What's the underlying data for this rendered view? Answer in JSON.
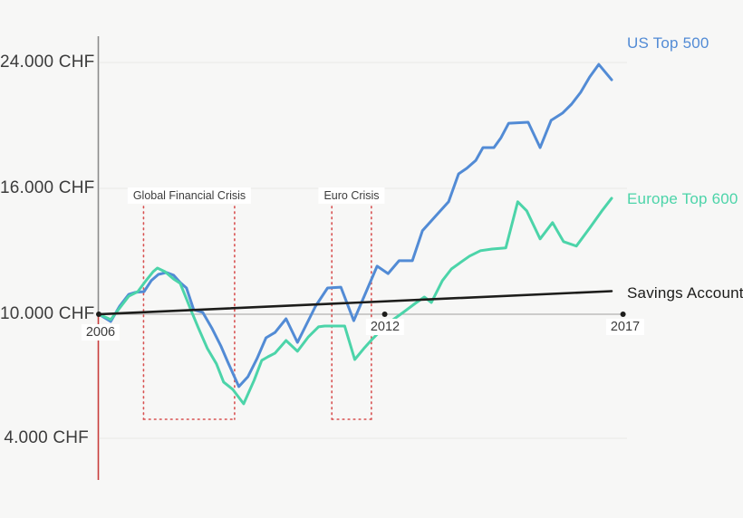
{
  "colors": {
    "background": "#f7f7f6",
    "us": "#528bd5",
    "europe": "#4cd4a9",
    "savings": "#1d1d1b",
    "axis": "#8c8c8c",
    "axis_below_start": "#c83c3c",
    "gridline": "#ebebe9",
    "baseline": "#b2b1af",
    "crisis": "#d85050",
    "text": "#3c3c3c",
    "chip_bg": "#ffffff"
  },
  "chart_data": {
    "type": "line",
    "currency": "CHF",
    "start_value": 10000,
    "baseline_value": 10000,
    "grid": "horizontal gridlines only",
    "legend_position": "labels at right ends of lines",
    "x_axis": {
      "ticks": [
        2006,
        2012,
        2017
      ],
      "labels": [
        "2006",
        "2012",
        "2017"
      ],
      "range": [
        2006,
        2017
      ]
    },
    "y_axis": {
      "tick_values": [
        24000,
        16000,
        10000,
        4000
      ],
      "tick_labels": [
        "24.000 CHF",
        "16.000 CHF",
        "10.000 CHF",
        "4.000 CHF"
      ]
    },
    "series": [
      {
        "name": "US Top 500",
        "color_key": "us",
        "points": [
          [
            2006.0,
            10000
          ],
          [
            2006.25,
            9650
          ],
          [
            2006.44,
            10390
          ],
          [
            2006.63,
            10950
          ],
          [
            2006.76,
            11040
          ],
          [
            2006.95,
            11080
          ],
          [
            2007.1,
            11600
          ],
          [
            2007.25,
            11900
          ],
          [
            2007.42,
            11990
          ],
          [
            2007.57,
            11860
          ],
          [
            2007.71,
            11510
          ],
          [
            2007.84,
            11250
          ],
          [
            2007.99,
            10220
          ],
          [
            2008.18,
            10090
          ],
          [
            2008.37,
            9340
          ],
          [
            2008.56,
            8470
          ],
          [
            2008.71,
            7680
          ],
          [
            2008.94,
            6500
          ],
          [
            2009.13,
            6980
          ],
          [
            2009.32,
            7850
          ],
          [
            2009.51,
            8860
          ],
          [
            2009.7,
            9120
          ],
          [
            2009.93,
            9780
          ],
          [
            2010.17,
            8640
          ],
          [
            2010.55,
            10390
          ],
          [
            2010.8,
            11250
          ],
          [
            2011.08,
            11290
          ],
          [
            2011.35,
            9690
          ],
          [
            2011.84,
            12290
          ],
          [
            2012.07,
            11940
          ],
          [
            2012.3,
            12550
          ],
          [
            2012.58,
            12550
          ],
          [
            2012.79,
            13980
          ],
          [
            2013.08,
            14710
          ],
          [
            2013.34,
            15360
          ],
          [
            2013.55,
            16920
          ],
          [
            2013.72,
            17270
          ],
          [
            2013.91,
            17780
          ],
          [
            2014.06,
            18590
          ],
          [
            2014.29,
            18590
          ],
          [
            2014.44,
            19220
          ],
          [
            2014.6,
            20140
          ],
          [
            2015.01,
            20200
          ],
          [
            2015.26,
            18590
          ],
          [
            2015.49,
            20320
          ],
          [
            2015.73,
            20780
          ],
          [
            2015.92,
            21350
          ],
          [
            2016.11,
            22100
          ],
          [
            2016.3,
            23080
          ],
          [
            2016.49,
            24120
          ],
          [
            2016.76,
            25100
          ]
        ]
      },
      {
        "name": "Europe Top 600",
        "color_key": "europe",
        "points": [
          [
            2006.0,
            10000
          ],
          [
            2006.25,
            9740
          ],
          [
            2006.44,
            10300
          ],
          [
            2006.63,
            10860
          ],
          [
            2006.82,
            11080
          ],
          [
            2006.99,
            11600
          ],
          [
            2007.14,
            12030
          ],
          [
            2007.23,
            12200
          ],
          [
            2007.39,
            12030
          ],
          [
            2007.57,
            11680
          ],
          [
            2007.71,
            11470
          ],
          [
            2007.84,
            10730
          ],
          [
            2007.94,
            10170
          ],
          [
            2008.09,
            9340
          ],
          [
            2008.28,
            8340
          ],
          [
            2008.47,
            7600
          ],
          [
            2008.62,
            6720
          ],
          [
            2008.81,
            6370
          ],
          [
            2009.04,
            5670
          ],
          [
            2009.26,
            6810
          ],
          [
            2009.42,
            7770
          ],
          [
            2009.55,
            7940
          ],
          [
            2009.7,
            8120
          ],
          [
            2009.93,
            8730
          ],
          [
            2010.17,
            8210
          ],
          [
            2010.4,
            8910
          ],
          [
            2010.61,
            9390
          ],
          [
            2010.74,
            9430
          ],
          [
            2011.16,
            9430
          ],
          [
            2011.37,
            7810
          ],
          [
            2011.56,
            8340
          ],
          [
            2011.75,
            8820
          ],
          [
            2012.07,
            9560
          ],
          [
            2012.39,
            10090
          ],
          [
            2012.64,
            10520
          ],
          [
            2012.83,
            10820
          ],
          [
            2012.98,
            10560
          ],
          [
            2013.21,
            11600
          ],
          [
            2013.4,
            12160
          ],
          [
            2013.59,
            12470
          ],
          [
            2013.78,
            12770
          ],
          [
            2014.01,
            13030
          ],
          [
            2014.25,
            13110
          ],
          [
            2014.54,
            13160
          ],
          [
            2014.79,
            15360
          ],
          [
            2014.98,
            14930
          ],
          [
            2015.26,
            13590
          ],
          [
            2015.52,
            14370
          ],
          [
            2015.75,
            13460
          ],
          [
            2016.02,
            13250
          ],
          [
            2016.3,
            14110
          ],
          [
            2016.57,
            14970
          ],
          [
            2016.76,
            15530
          ]
        ]
      },
      {
        "name": "Savings Account",
        "color_key": "savings",
        "points": [
          [
            2006.0,
            10000
          ],
          [
            2016.76,
            11100
          ]
        ]
      }
    ],
    "annotations": [
      {
        "label": "Global Financial Crisis",
        "x_start": 2006.94,
        "x_end": 2008.85,
        "y_top": 15140,
        "y_bottom": 4920
      },
      {
        "label": "Euro Crisis",
        "x_start": 2010.89,
        "x_end": 2011.72,
        "y_top": 15140,
        "y_bottom": 4920
      }
    ],
    "baseline_marker_years": [
      2006,
      2012,
      2017
    ]
  }
}
